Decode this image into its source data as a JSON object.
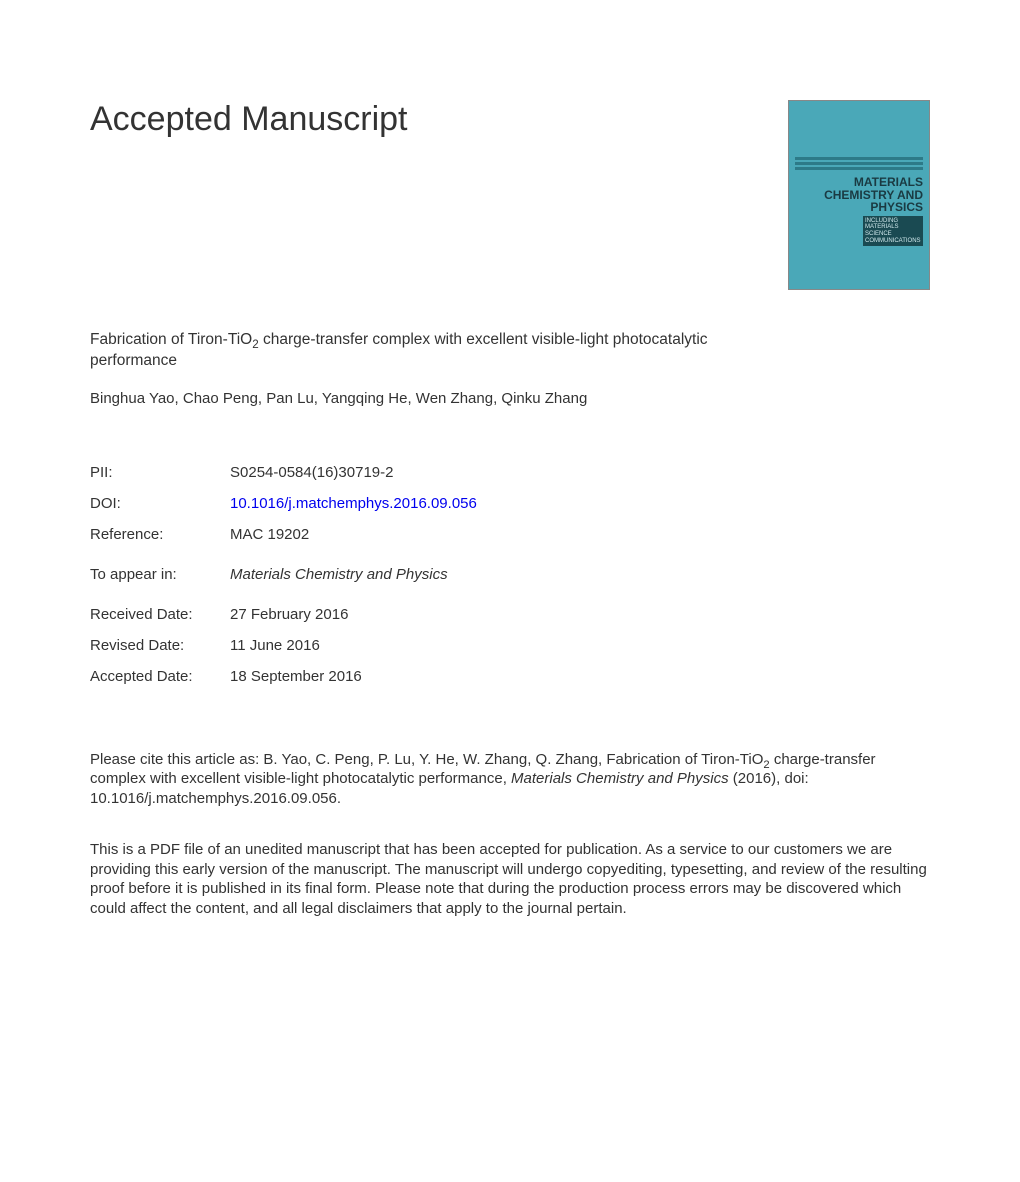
{
  "heading": "Accepted Manuscript",
  "journal_cover": {
    "title_line1": "MATERIALS",
    "title_line2": "CHEMISTRY AND",
    "title_line3": "PHYSICS",
    "subtitle": "INCLUDING MATERIALS SCIENCE COMMUNICATIONS",
    "bg_color": "#4aa8b8",
    "stripe_color": "#2d7a88",
    "text_color": "#1a3a42"
  },
  "article": {
    "title_pre": "Fabrication of Tiron-TiO",
    "title_sub": "2",
    "title_post": " charge-transfer complex with excellent visible-light photocatalytic performance",
    "authors": "Binghua Yao, Chao Peng, Pan Lu, Yangqing He, Wen Zhang, Qinku Zhang"
  },
  "meta": {
    "pii_label": "PII:",
    "pii_value": "S0254-0584(16)30719-2",
    "doi_label": "DOI:",
    "doi_value": "10.1016/j.matchemphys.2016.09.056",
    "ref_label": "Reference:",
    "ref_value": "MAC 19202",
    "appear_label": "To appear in:",
    "appear_value": "Materials Chemistry and Physics",
    "received_label": "Received Date:",
    "received_value": "27 February 2016",
    "revised_label": "Revised Date:",
    "revised_value": "11 June 2016",
    "accepted_label": "Accepted Date:",
    "accepted_value": "18 September 2016"
  },
  "citation": {
    "pre": "Please cite this article as: B. Yao, C. Peng, P. Lu, Y. He, W. Zhang, Q. Zhang, Fabrication of Tiron-TiO",
    "sub": "2",
    "mid": " charge-transfer complex with excellent visible-light photocatalytic performance, ",
    "journal": "Materials Chemistry and Physics",
    "post": " (2016), doi: 10.1016/j.matchemphys.2016.09.056."
  },
  "disclaimer": "This is a PDF file of an unedited manuscript that has been accepted for publication. As a service to our customers we are providing this early version of the manuscript. The manuscript will undergo copyediting, typesetting, and review of the resulting proof before it is published in its final form. Please note that during the production process errors may be discovered which could affect the content, and all legal disclaimers that apply to the journal pertain."
}
